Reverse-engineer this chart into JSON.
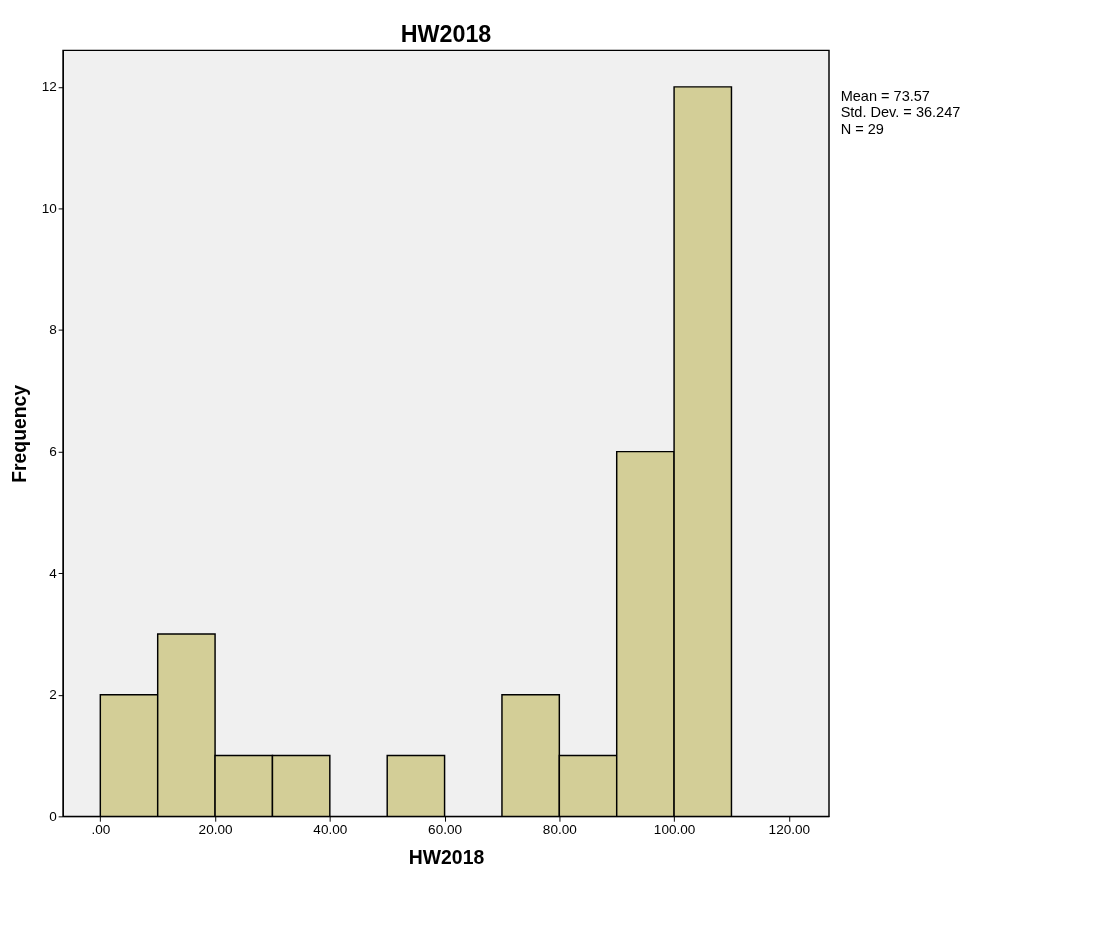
{
  "chart_data": {
    "type": "histogram",
    "title": "HW2018",
    "xlabel": "HW2018",
    "ylabel": "Frequency",
    "bins": [
      0,
      10,
      20,
      30,
      40,
      50,
      60,
      70,
      80,
      90,
      100,
      110
    ],
    "values": [
      2,
      3,
      1,
      1,
      0,
      1,
      0,
      2,
      1,
      6,
      12
    ],
    "color": "#d3ce97",
    "xlim": [
      -6.5,
      127
    ],
    "xticks": [
      {
        "value": 0,
        "label": ".00"
      },
      {
        "value": 20,
        "label": "20.00"
      },
      {
        "value": 40,
        "label": "40.00"
      },
      {
        "value": 60,
        "label": "60.00"
      },
      {
        "value": 80,
        "label": "80.00"
      },
      {
        "value": 100,
        "label": "100.00"
      },
      {
        "value": 120,
        "label": "120.00"
      }
    ],
    "ylim": [
      0,
      12.6
    ],
    "yticks": [
      0,
      2,
      4,
      6,
      8,
      10,
      12
    ],
    "grid": false,
    "annotations": [
      "Mean = 73.57",
      "Std. Dev. = 36.247",
      "N = 29"
    ]
  }
}
